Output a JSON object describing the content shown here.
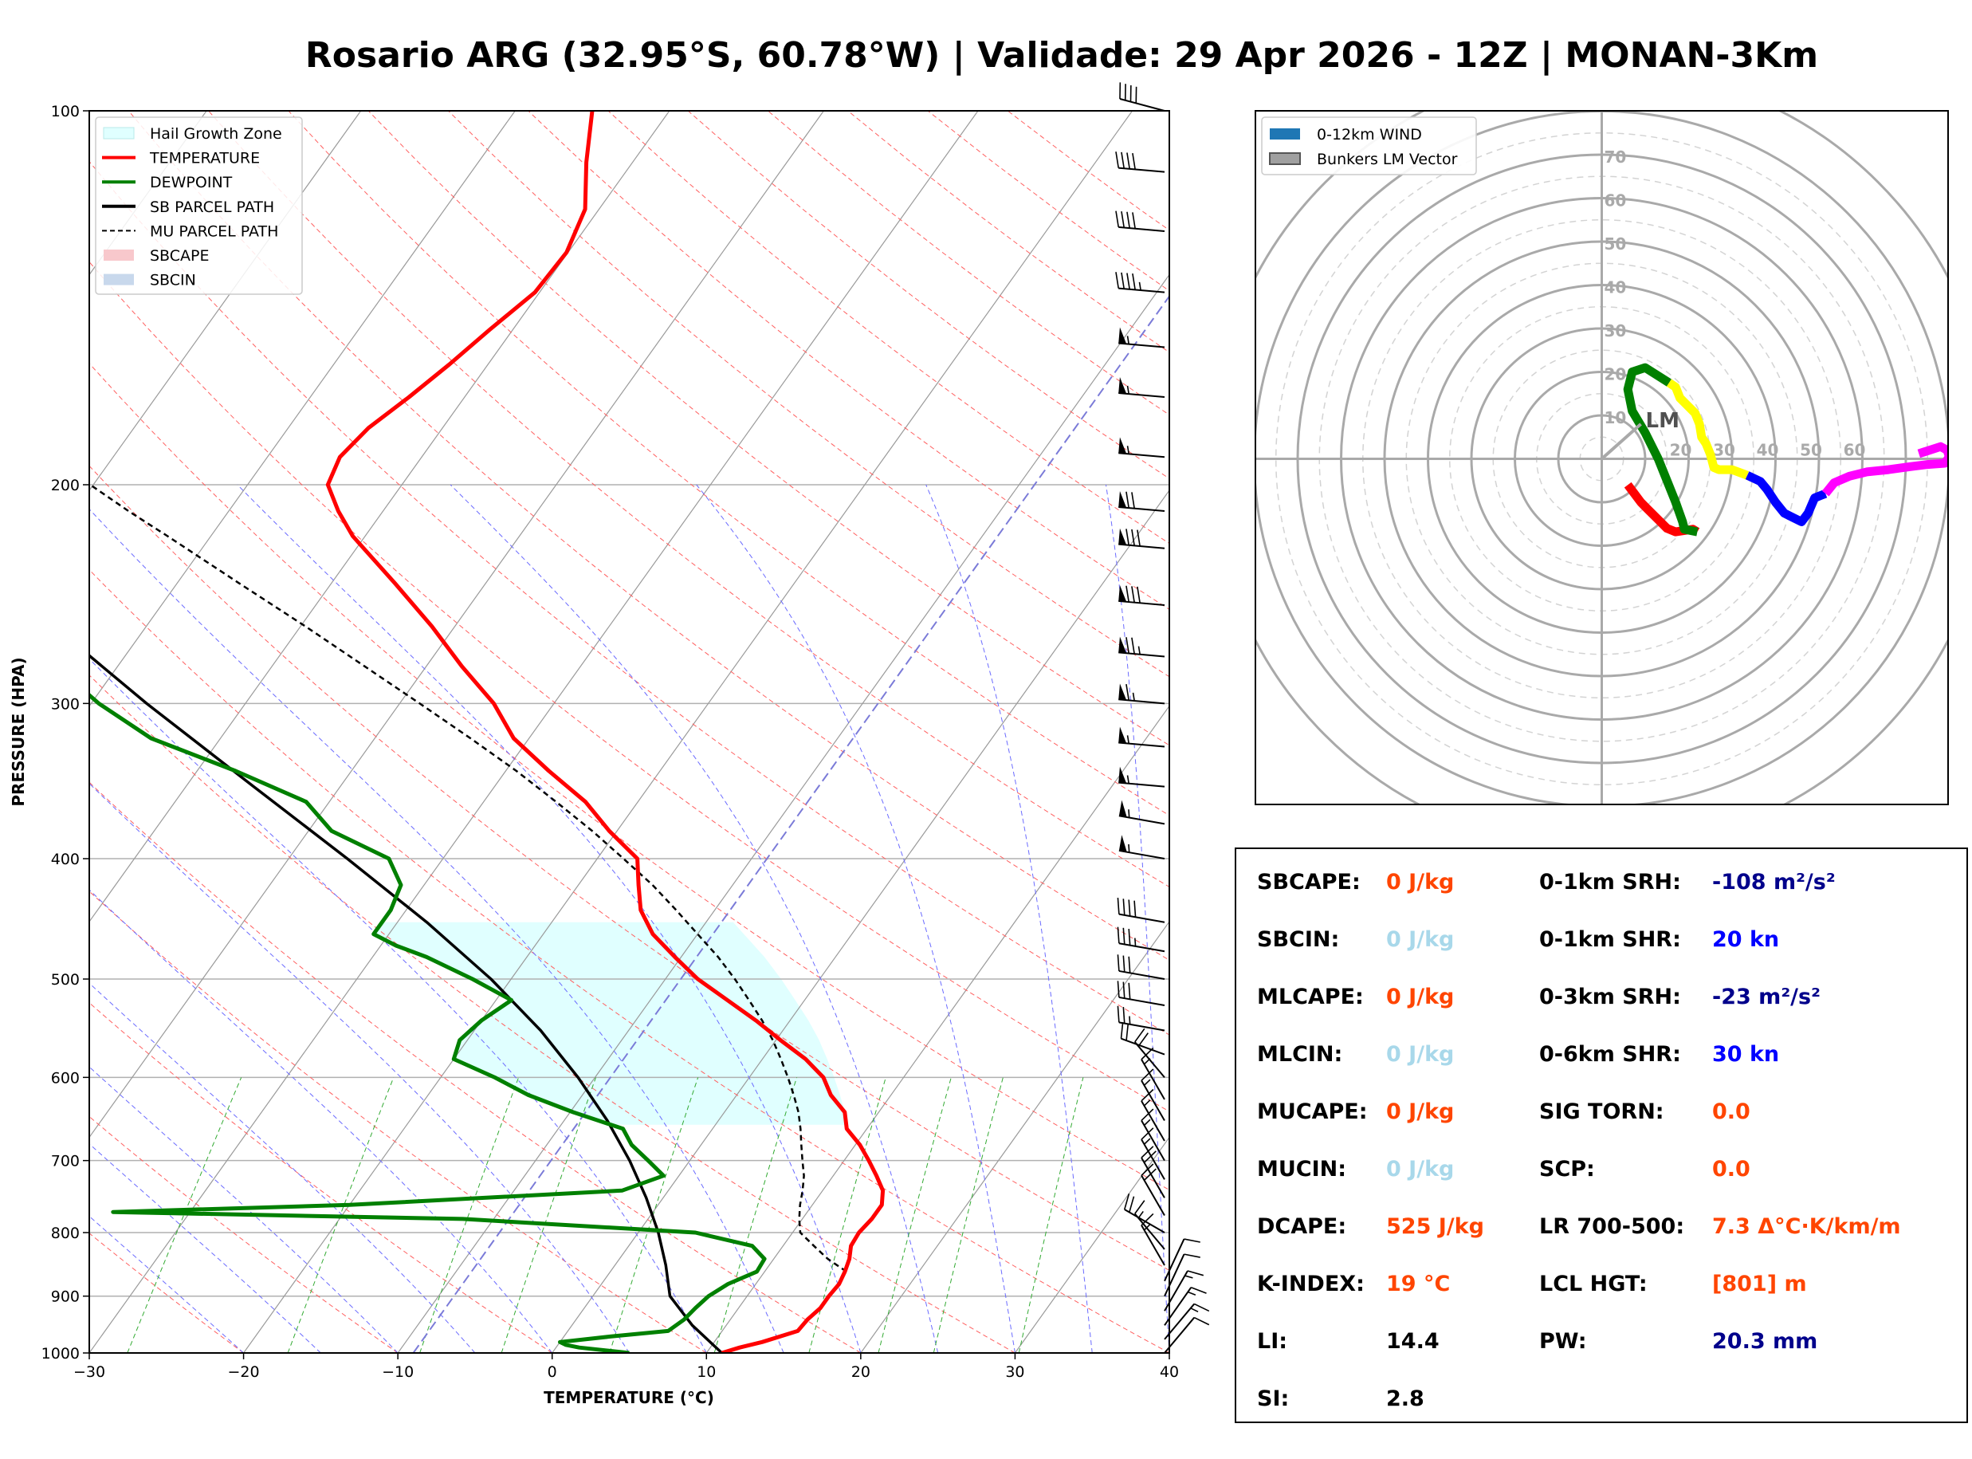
{
  "title": "Rosario ARG (32.95°S, 60.78°W) | Validade: 29 Apr 2026 - 12Z | MONAN-3Km",
  "chart_data": [
    {
      "type": "skew-t",
      "xlabel": "TEMPERATURE (°C)",
      "ylabel": "PRESSURE (HPA)",
      "xlim": [
        -30,
        40
      ],
      "ylim": [
        1000,
        100
      ],
      "x_ticks": [
        -30,
        -20,
        -10,
        0,
        10,
        20,
        30,
        40
      ],
      "x_tick_labels": [
        "−30",
        "−20",
        "−10",
        "0",
        "10",
        "20",
        "30",
        "40"
      ],
      "y_ticks": [
        1000,
        900,
        800,
        700,
        600,
        500,
        400,
        300,
        200,
        100
      ],
      "skew_deg_per_log10": 57.6,
      "legend": [
        {
          "label": "Hail Growth Zone",
          "style": "fill",
          "color": "#e0ffff"
        },
        {
          "label": "TEMPERATURE",
          "style": "line",
          "color": "#ff0000"
        },
        {
          "label": "DEWPOINT",
          "style": "line",
          "color": "#008000"
        },
        {
          "label": "SB PARCEL PATH",
          "style": "line",
          "color": "#000000"
        },
        {
          "label": "MU PARCEL PATH",
          "style": "dashed",
          "color": "#000000"
        },
        {
          "label": "SBCAPE",
          "style": "fill",
          "color": "#f8c8cc"
        },
        {
          "label": "SBCIN",
          "style": "fill",
          "color": "#c8d8ec"
        }
      ],
      "temperature": {
        "p": [
          1000,
          990,
          980,
          960,
          940,
          920,
          900,
          880,
          860,
          840,
          820,
          800,
          780,
          760,
          740,
          720,
          700,
          680,
          660,
          640,
          620,
          600,
          580,
          560,
          540,
          520,
          500,
          480,
          460,
          440,
          420,
          400,
          380,
          360,
          340,
          320,
          300,
          280,
          260,
          240,
          220,
          210,
          200,
          190,
          180,
          170,
          160,
          150,
          140,
          130,
          120,
          110,
          100
        ],
        "t": [
          11,
          11.9,
          13.1,
          14.9,
          15.0,
          15.3,
          15.3,
          15.4,
          15.2,
          14.9,
          14.4,
          14.3,
          14.5,
          14.5,
          13.9,
          12.8,
          11.6,
          10.3,
          8.7,
          7.8,
          6.1,
          4.8,
          2.8,
          0.3,
          -2.2,
          -5.0,
          -7.9,
          -10.4,
          -12.9,
          -14.8,
          -16.1,
          -17.4,
          -20.5,
          -23.4,
          -27.2,
          -31.0,
          -33.9,
          -37.7,
          -41.5,
          -45.9,
          -50.8,
          -52.9,
          -54.8,
          -55.3,
          -54.8,
          -53.6,
          -52.5,
          -51.5,
          -50.3,
          -50.1,
          -50.9,
          -53.0,
          -55.0
        ]
      },
      "dewpoint": {
        "p": [
          1000,
          990,
          985,
          980,
          970,
          960,
          940,
          920,
          900,
          880,
          860,
          840,
          820,
          800,
          780,
          770,
          760,
          740,
          720,
          700,
          680,
          660,
          640,
          620,
          600,
          580,
          560,
          540,
          520,
          500,
          480,
          470,
          460,
          440,
          420,
          400,
          380,
          360,
          340,
          320,
          300,
          280,
          260,
          240,
          220,
          210,
          200,
          190,
          180,
          170,
          160,
          150,
          140,
          130,
          120,
          110,
          100
        ],
        "td": [
          5,
          1.5,
          0.5,
          0,
          3.0,
          6.5,
          7.0,
          7.2,
          7.5,
          8.2,
          9.5,
          9.4,
          8.0,
          3.7,
          -12,
          -35,
          -20,
          -3.0,
          -1.0,
          -2.7,
          -4.5,
          -5.8,
          -9.8,
          -13.5,
          -16.5,
          -20.0,
          -20.5,
          -20.0,
          -19.0,
          -22.5,
          -26.5,
          -29,
          -31,
          -31.0,
          -31.5,
          -33.5,
          -38.5,
          -41.5,
          -47.5,
          -54.5,
          -59.5,
          -64.0,
          -70.0,
          -75.0,
          -75.5,
          -75.5,
          -76.0,
          -76.5,
          -77.3,
          -78.3,
          -79.0,
          -80.1,
          -81.5,
          -83.0,
          -84.3,
          -86.2,
          -88.3
        ]
      },
      "sb_parcel": {
        "p": [
          1000,
          950,
          900,
          850,
          800,
          750,
          700,
          650,
          600,
          550,
          500,
          450,
          400,
          350,
          300,
          250,
          200,
          150,
          120
        ],
        "t": [
          11,
          7.8,
          5.0,
          3.3,
          1.3,
          -1.1,
          -3.9,
          -7.2,
          -11.1,
          -15.7,
          -21.3,
          -28.1,
          -36.2,
          -45.6,
          -56.4,
          -68.6,
          -82.6,
          -98.0,
          -109
        ]
      },
      "mu_parcel": {
        "p": [
          860,
          840,
          820,
          800,
          780,
          760,
          740,
          720,
          700,
          680,
          660,
          640,
          620,
          600,
          580,
          560,
          540,
          520,
          500,
          480,
          460,
          440,
          420,
          400,
          380,
          360,
          340,
          320,
          300,
          280,
          260,
          240,
          220,
          210,
          200,
          190,
          180,
          170,
          160,
          150,
          140,
          130,
          120
        ],
        "t": [
          15.3,
          13.5,
          12.0,
          10.5,
          9.8,
          9.2,
          8.7,
          8.1,
          7.3,
          6.5,
          5.7,
          4.8,
          3.7,
          2.5,
          1.2,
          -0.2,
          -1.8,
          -3.6,
          -5.5,
          -7.6,
          -10.0,
          -12.5,
          -15.2,
          -18.3,
          -21.6,
          -25.3,
          -29.3,
          -33.8,
          -38.7,
          -44.0,
          -49.7,
          -56.0,
          -62.8,
          -66.5,
          -70.2,
          -74.2,
          -78.3,
          -82.7,
          -87.3,
          -92.2,
          -97.4,
          -103,
          -109
        ]
      },
      "hail_growth_zone": {
        "p": [
          655,
          450
        ]
      },
      "wind_barbs": [
        {
          "p": 1000,
          "dir": 40,
          "kt": 10
        },
        {
          "p": 975,
          "dir": 40,
          "kt": 15
        },
        {
          "p": 950,
          "dir": 35,
          "kt": 15
        },
        {
          "p": 925,
          "dir": 30,
          "kt": 15
        },
        {
          "p": 900,
          "dir": 25,
          "kt": 10
        },
        {
          "p": 875,
          "dir": 25,
          "kt": 10
        },
        {
          "p": 850,
          "dir": 330,
          "kt": 15
        },
        {
          "p": 825,
          "dir": 320,
          "kt": 15
        },
        {
          "p": 800,
          "dir": 300,
          "kt": 20
        },
        {
          "p": 775,
          "dir": 330,
          "kt": 20
        },
        {
          "p": 750,
          "dir": 330,
          "kt": 20
        },
        {
          "p": 725,
          "dir": 330,
          "kt": 15
        },
        {
          "p": 700,
          "dir": 330,
          "kt": 15
        },
        {
          "p": 675,
          "dir": 330,
          "kt": 15
        },
        {
          "p": 650,
          "dir": 330,
          "kt": 15
        },
        {
          "p": 625,
          "dir": 330,
          "kt": 15
        },
        {
          "p": 600,
          "dir": 320,
          "kt": 20
        },
        {
          "p": 575,
          "dir": 290,
          "kt": 20
        },
        {
          "p": 550,
          "dir": 280,
          "kt": 25
        },
        {
          "p": 525,
          "dir": 280,
          "kt": 30
        },
        {
          "p": 500,
          "dir": 280,
          "kt": 30
        },
        {
          "p": 475,
          "dir": 280,
          "kt": 35
        },
        {
          "p": 450,
          "dir": 280,
          "kt": 40
        },
        {
          "p": 400,
          "dir": 280,
          "kt": 55
        },
        {
          "p": 375,
          "dir": 280,
          "kt": 55
        },
        {
          "p": 350,
          "dir": 275,
          "kt": 55
        },
        {
          "p": 325,
          "dir": 275,
          "kt": 55
        },
        {
          "p": 300,
          "dir": 275,
          "kt": 65
        },
        {
          "p": 275,
          "dir": 275,
          "kt": 75
        },
        {
          "p": 250,
          "dir": 275,
          "kt": 80
        },
        {
          "p": 225,
          "dir": 275,
          "kt": 80
        },
        {
          "p": 210,
          "dir": 275,
          "kt": 70
        },
        {
          "p": 190,
          "dir": 275,
          "kt": 55
        },
        {
          "p": 170,
          "dir": 275,
          "kt": 55
        },
        {
          "p": 155,
          "dir": 275,
          "kt": 55
        },
        {
          "p": 140,
          "dir": 275,
          "kt": 45
        },
        {
          "p": 125,
          "dir": 275,
          "kt": 40
        },
        {
          "p": 112,
          "dir": 275,
          "kt": 40
        },
        {
          "p": 100,
          "dir": 285,
          "kt": 40
        }
      ]
    },
    {
      "type": "hodograph",
      "rings": [
        10,
        20,
        30,
        40,
        50,
        60,
        70
      ],
      "ring_labels": [
        "10",
        "20",
        "30",
        "40",
        "50",
        "60",
        "70"
      ],
      "x_ring_labels": [
        "20",
        "30",
        "40",
        "50",
        "60"
      ],
      "legend": [
        {
          "label": "0-12km WIND",
          "color": "#1f77b4"
        },
        {
          "label": "Bunkers LM Vector",
          "color": "#a0a0a0"
        }
      ],
      "lm_label": "LM",
      "lm_vector": {
        "u": 9,
        "v": 8
      },
      "segments": [
        {
          "name": "0-1km",
          "color": "#ff0000",
          "u": [
            6,
            7.5,
            9,
            10.5,
            12,
            13.5,
            15,
            17,
            19,
            21,
            22
          ],
          "v": [
            -6,
            -8,
            -10,
            -11.5,
            -13,
            -14.5,
            -16,
            -16.8,
            -16.5,
            -16.2,
            -16.8
          ]
        },
        {
          "name": "1-3km",
          "color": "#008000",
          "u": [
            22,
            19,
            18.6,
            17,
            15,
            13,
            10,
            7,
            6,
            7,
            10,
            15.5
          ],
          "v": [
            -16.8,
            -16.2,
            -14.5,
            -10,
            -5,
            0,
            6,
            11,
            16,
            20,
            21,
            17.5
          ]
        },
        {
          "name": "3-6km",
          "color": "#ffff00",
          "u": [
            15.5,
            17,
            18,
            20,
            21.5,
            22.5,
            23,
            24,
            25,
            25.8,
            27,
            30,
            33.5
          ],
          "v": [
            17.5,
            16.5,
            14,
            12,
            10.5,
            8,
            5,
            3.5,
            1,
            -2,
            -2.5,
            -2.5,
            -3.8
          ]
        },
        {
          "name": "6-9km",
          "color": "#0000ff",
          "u": [
            33.5,
            36.5,
            38,
            40,
            42,
            44,
            46,
            47.5,
            49,
            51.5
          ],
          "v": [
            -3.8,
            -5.2,
            -7,
            -10,
            -12.5,
            -13.5,
            -14.5,
            -12.5,
            -9,
            -8
          ]
        },
        {
          "name": "9-12km",
          "color": "#ff00ff",
          "u": [
            51.5,
            53.5,
            57,
            61,
            66,
            71,
            75,
            79,
            80,
            79.5,
            78,
            73
          ],
          "v": [
            -8,
            -5.5,
            -4,
            -3,
            -2.5,
            -1.8,
            -1.3,
            -1,
            0.5,
            2,
            2.8,
            1.2
          ]
        }
      ]
    }
  ],
  "stats": {
    "left": [
      {
        "label": "SBCAPE:",
        "value": "0 J/kg",
        "color": "#ff4500"
      },
      {
        "label": "SBCIN:",
        "value": "0 J/kg",
        "color": "#a8d8ea"
      },
      {
        "label": "MLCAPE:",
        "value": "0 J/kg",
        "color": "#ff4500"
      },
      {
        "label": "MLCIN:",
        "value": "0 J/kg",
        "color": "#a8d8ea"
      },
      {
        "label": "MUCAPE:",
        "value": "0 J/kg",
        "color": "#ff4500"
      },
      {
        "label": "MUCIN:",
        "value": "0 J/kg",
        "color": "#a8d8ea"
      },
      {
        "label": "DCAPE:",
        "value": "525 J/kg",
        "color": "#ff4500"
      },
      {
        "label": "K-INDEX:",
        "value": "19 °C",
        "color": "#ff4500"
      },
      {
        "label": "LI:",
        "value": "14.4",
        "color": "#000000"
      },
      {
        "label": "SI:",
        "value": "2.8",
        "color": "#000000"
      }
    ],
    "right": [
      {
        "label": "0-1km SRH:",
        "value": "-108 m²/s²",
        "color": "#00008b"
      },
      {
        "label": "0-1km SHR:",
        "value": "20 kn",
        "color": "#0000ff"
      },
      {
        "label": "0-3km SRH:",
        "value": "-23 m²/s²",
        "color": "#00008b"
      },
      {
        "label": "0-6km SHR:",
        "value": "30 kn",
        "color": "#0000ff"
      },
      {
        "label": "SIG TORN:",
        "value": "0.0",
        "color": "#ff4500"
      },
      {
        "label": "SCP:",
        "value": "0.0",
        "color": "#ff4500"
      },
      {
        "label": "LR 700-500:",
        "value": "7.3 Δ°C·K/km/m",
        "color": "#ff4500"
      },
      {
        "label": "LCL HGT:",
        "value": "[801] m",
        "color": "#ff4500"
      },
      {
        "label": "PW:",
        "value": "20.3 mm",
        "color": "#00008b"
      }
    ]
  }
}
